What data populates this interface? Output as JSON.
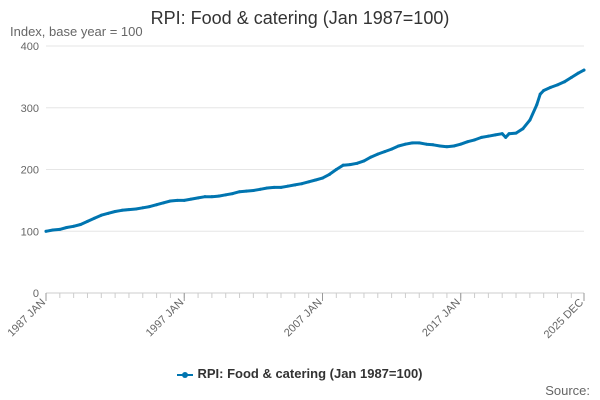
{
  "chart_data": {
    "type": "line",
    "title": "RPI: Food & catering (Jan 1987=100)",
    "ylabel": "Index, base year = 100",
    "xlabel": "",
    "ylim": [
      0,
      400
    ],
    "yticks": [
      0,
      100,
      200,
      300,
      400
    ],
    "xlim": [
      1987.0,
      2025.917
    ],
    "xticks": [
      {
        "label": "1987 JAN",
        "x": 1987.0
      },
      {
        "label": "1997 JAN",
        "x": 1997.0
      },
      {
        "label": "2007 JAN",
        "x": 2007.0
      },
      {
        "label": "2017 JAN",
        "x": 2017.0
      },
      {
        "label": "2025 DEC",
        "x": 2025.917
      }
    ],
    "grid": true,
    "legend_position": "bottom",
    "source": "Source:",
    "color": "#0075b0",
    "series": [
      {
        "name": "RPI: Food & catering (Jan 1987=100)",
        "x": [
          1987.0,
          1987.5,
          1988.0,
          1988.5,
          1989.0,
          1989.5,
          1990.0,
          1990.5,
          1991.0,
          1991.5,
          1992.0,
          1992.5,
          1993.0,
          1993.5,
          1994.0,
          1994.5,
          1995.0,
          1995.5,
          1996.0,
          1996.5,
          1997.0,
          1997.5,
          1998.0,
          1998.5,
          1999.0,
          1999.5,
          2000.0,
          2000.5,
          2001.0,
          2001.5,
          2002.0,
          2002.5,
          2003.0,
          2003.5,
          2004.0,
          2004.5,
          2005.0,
          2005.5,
          2006.0,
          2006.5,
          2007.0,
          2007.5,
          2008.0,
          2008.5,
          2009.0,
          2009.5,
          2010.0,
          2010.5,
          2011.0,
          2011.5,
          2012.0,
          2012.5,
          2013.0,
          2013.5,
          2014.0,
          2014.5,
          2015.0,
          2015.5,
          2016.0,
          2016.5,
          2017.0,
          2017.5,
          2018.0,
          2018.5,
          2019.0,
          2019.5,
          2020.0,
          2020.25,
          2020.5,
          2021.0,
          2021.5,
          2022.0,
          2022.5,
          2022.75,
          2023.0,
          2023.5,
          2024.0,
          2024.5,
          2025.0,
          2025.5,
          2025.917
        ],
        "y": [
          100,
          102,
          103,
          106,
          108,
          111,
          116,
          121,
          126,
          129,
          132,
          134,
          135,
          136,
          138,
          140,
          143,
          146,
          149,
          150,
          150,
          152,
          154,
          156,
          156,
          157,
          159,
          161,
          164,
          165,
          166,
          168,
          170,
          171,
          171,
          173,
          175,
          177,
          180,
          183,
          186,
          192,
          200,
          207,
          208,
          210,
          214,
          220,
          225,
          229,
          233,
          238,
          241,
          243,
          243,
          241,
          240,
          238,
          237,
          238,
          241,
          245,
          248,
          252,
          254,
          256,
          258,
          252,
          258,
          259,
          266,
          280,
          305,
          322,
          328,
          333,
          337,
          342,
          349,
          356,
          361
        ]
      }
    ]
  }
}
